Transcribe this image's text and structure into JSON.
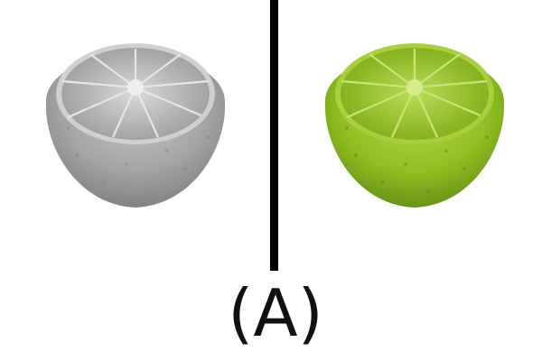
{
  "figure": {
    "caption": "(A)"
  },
  "images": {
    "left": {
      "icon": "lime-half-icon",
      "tone": "grayscale"
    },
    "right": {
      "icon": "lime-half-icon",
      "tone": "color"
    }
  },
  "colors": {
    "background": "#ffffff",
    "divider": "#000000",
    "gray_rind": "#8e8e8e",
    "gray_flesh": "#bcbcbc",
    "lime_rind": "#8bb81e",
    "lime_flesh": "#a5cc3a"
  }
}
